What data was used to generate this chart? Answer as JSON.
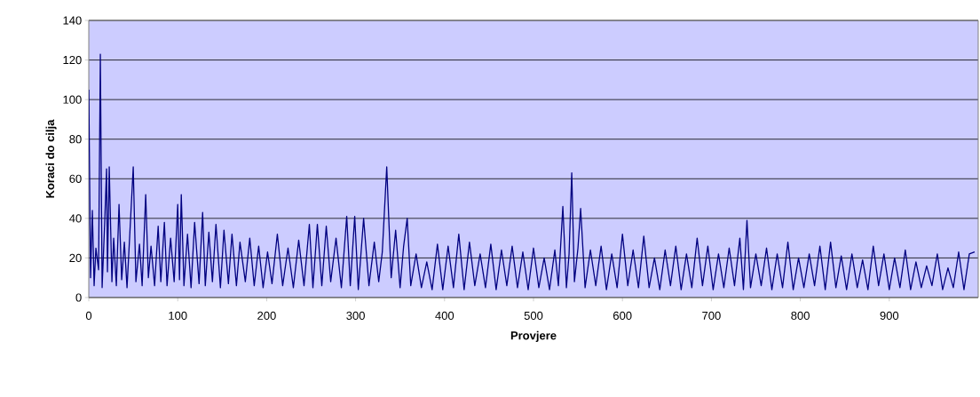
{
  "chart_data": {
    "type": "line",
    "xlabel": "Provjere",
    "ylabel": "Koraci do cilja",
    "xlim": [
      0,
      1000
    ],
    "ylim": [
      0,
      140
    ],
    "xticks": [
      0,
      100,
      200,
      300,
      400,
      500,
      600,
      700,
      800,
      900
    ],
    "yticks": [
      0,
      20,
      40,
      60,
      80,
      100,
      120,
      140
    ],
    "grid": "y",
    "marker": "none",
    "line_style": "solid",
    "x": [
      0,
      2,
      4,
      6,
      8,
      11,
      13,
      15,
      18,
      20,
      21,
      23,
      26,
      28,
      31,
      34,
      37,
      40,
      43,
      46,
      50,
      53,
      57,
      60,
      64,
      67,
      70,
      74,
      78,
      81,
      85,
      88,
      92,
      96,
      100,
      102,
      104,
      107,
      111,
      115,
      119,
      124,
      128,
      131,
      135,
      139,
      143,
      148,
      152,
      157,
      161,
      166,
      170,
      176,
      181,
      186,
      191,
      196,
      201,
      206,
      212,
      218,
      224,
      230,
      236,
      242,
      248,
      252,
      257,
      262,
      267,
      272,
      278,
      284,
      290,
      294,
      299,
      303,
      309,
      315,
      321,
      326,
      330,
      335,
      337,
      340,
      345,
      350,
      354,
      358,
      362,
      368,
      374,
      380,
      386,
      392,
      398,
      404,
      410,
      416,
      422,
      428,
      434,
      440,
      446,
      452,
      458,
      464,
      470,
      476,
      482,
      488,
      494,
      500,
      506,
      512,
      518,
      524,
      528,
      533,
      537,
      540,
      543,
      546,
      550,
      553,
      558,
      564,
      570,
      576,
      582,
      588,
      594,
      600,
      606,
      612,
      618,
      624,
      630,
      636,
      642,
      648,
      654,
      660,
      666,
      672,
      678,
      684,
      690,
      696,
      702,
      708,
      714,
      720,
      726,
      732,
      736,
      740,
      744,
      750,
      756,
      762,
      768,
      774,
      780,
      786,
      792,
      798,
      804,
      810,
      816,
      822,
      828,
      834,
      840,
      846,
      852,
      858,
      864,
      870,
      876,
      882,
      888,
      894,
      900,
      906,
      912,
      918,
      924,
      930,
      936,
      942,
      948,
      954,
      960,
      966,
      972,
      978,
      984,
      990,
      996
    ],
    "series": [
      {
        "color": "#000080",
        "values": [
          105,
          10,
          44,
          6,
          25,
          14,
          123,
          5,
          39,
          65,
          13,
          66,
          8,
          30,
          6,
          47,
          9,
          28,
          5,
          31,
          66,
          8,
          27,
          6,
          52,
          10,
          26,
          6,
          36,
          8,
          38,
          6,
          30,
          8,
          47,
          9,
          52,
          6,
          32,
          5,
          38,
          7,
          43,
          6,
          33,
          8,
          37,
          5,
          34,
          7,
          32,
          6,
          28,
          8,
          30,
          6,
          26,
          5,
          23,
          7,
          32,
          6,
          25,
          5,
          29,
          6,
          37,
          5,
          37,
          6,
          36,
          8,
          30,
          5,
          41,
          6,
          41,
          4,
          40,
          6,
          28,
          8,
          23,
          66,
          43,
          10,
          34,
          5,
          26,
          40,
          6,
          22,
          5,
          18,
          4,
          27,
          4,
          26,
          5,
          32,
          4,
          28,
          6,
          22,
          5,
          27,
          4,
          24,
          6,
          26,
          5,
          23,
          4,
          25,
          5,
          20,
          4,
          24,
          6,
          46,
          5,
          22,
          63,
          8,
          25,
          45,
          5,
          24,
          6,
          26,
          4,
          22,
          5,
          32,
          6,
          24,
          5,
          31,
          5,
          20,
          4,
          24,
          6,
          26,
          4,
          22,
          5,
          30,
          6,
          26,
          4,
          22,
          5,
          25,
          6,
          30,
          4,
          39,
          5,
          22,
          6,
          25,
          4,
          22,
          5,
          28,
          4,
          20,
          5,
          22,
          6,
          26,
          4,
          28,
          5,
          21,
          4,
          22,
          5,
          19,
          4,
          26,
          6,
          22,
          4,
          20,
          5,
          24,
          4,
          18,
          5,
          16,
          6,
          22,
          4,
          15,
          5,
          23,
          4,
          22,
          23
        ]
      }
    ]
  }
}
